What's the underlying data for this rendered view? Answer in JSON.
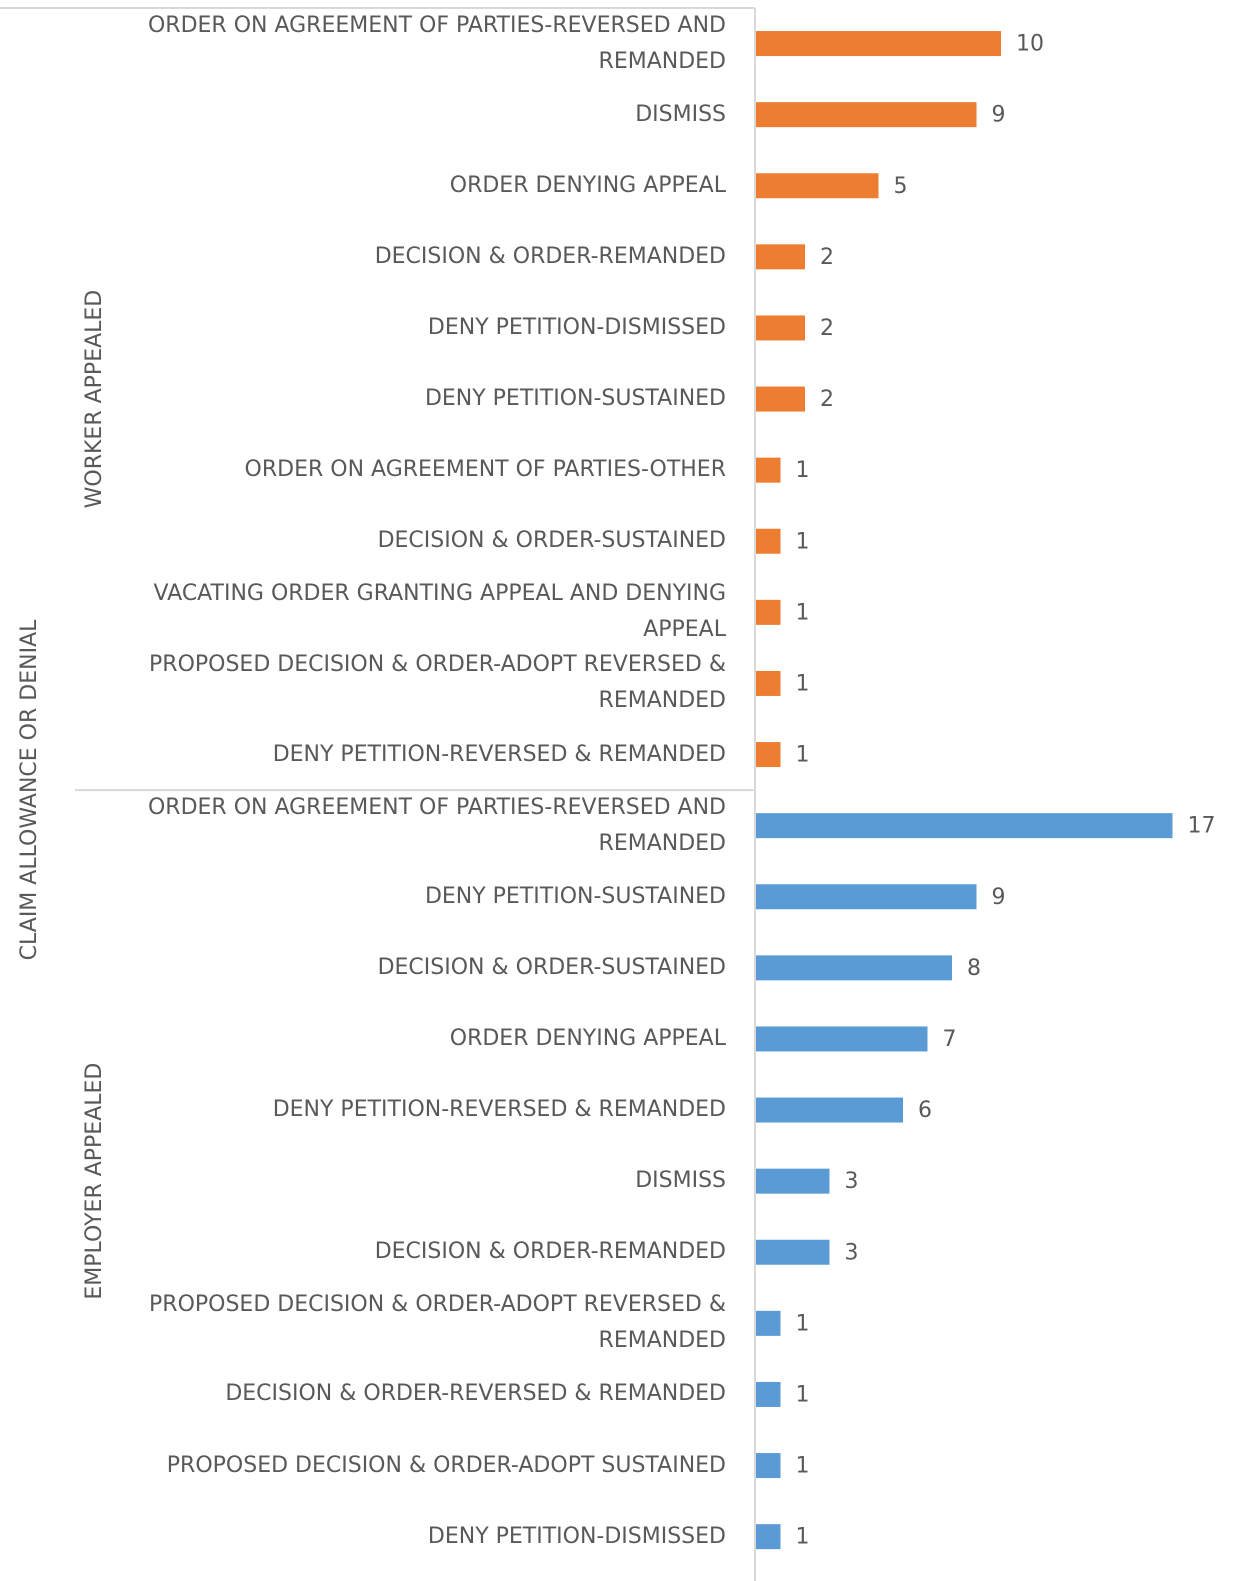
{
  "chart_data": {
    "type": "bar",
    "orientation": "horizontal",
    "group_title": "CLAIM ALLOWANCE OR DENIAL",
    "xlim": [
      0,
      20
    ],
    "groups": [
      {
        "name": "WORKER APPEALED",
        "color": "#ed7d31",
        "categories": [
          "ORDER ON AGREEMENT OF PARTIES-REVERSED AND REMANDED",
          "DISMISS",
          "ORDER DENYING APPEAL",
          "DECISION & ORDER-REMANDED",
          "DENY PETITION-DISMISSED",
          "DENY PETITION-SUSTAINED",
          "ORDER ON AGREEMENT OF PARTIES-OTHER",
          "DECISION & ORDER-SUSTAINED",
          "VACATING ORDER GRANTING APPEAL AND DENYING APPEAL",
          "PROPOSED DECISION & ORDER-ADOPT REVERSED & REMANDED",
          "DENY PETITION-REVERSED & REMANDED"
        ],
        "values": [
          10,
          9,
          5,
          2,
          2,
          2,
          1,
          1,
          1,
          1,
          1
        ]
      },
      {
        "name": "EMPLOYER APPEALED",
        "color": "#5b9bd5",
        "categories": [
          "ORDER ON AGREEMENT OF PARTIES-REVERSED AND REMANDED",
          "DENY PETITION-SUSTAINED",
          "DECISION & ORDER-SUSTAINED",
          "ORDER DENYING APPEAL",
          "DENY PETITION-REVERSED & REMANDED",
          "DISMISS",
          "DECISION & ORDER-REMANDED",
          "PROPOSED DECISION & ORDER-ADOPT REVERSED & REMANDED",
          "DECISION & ORDER-REVERSED & REMANDED",
          "PROPOSED DECISION & ORDER-ADOPT SUSTAINED",
          "DENY PETITION-DISMISSED"
        ],
        "values": [
          17,
          9,
          8,
          7,
          6,
          3,
          3,
          1,
          1,
          1,
          1
        ]
      }
    ]
  }
}
